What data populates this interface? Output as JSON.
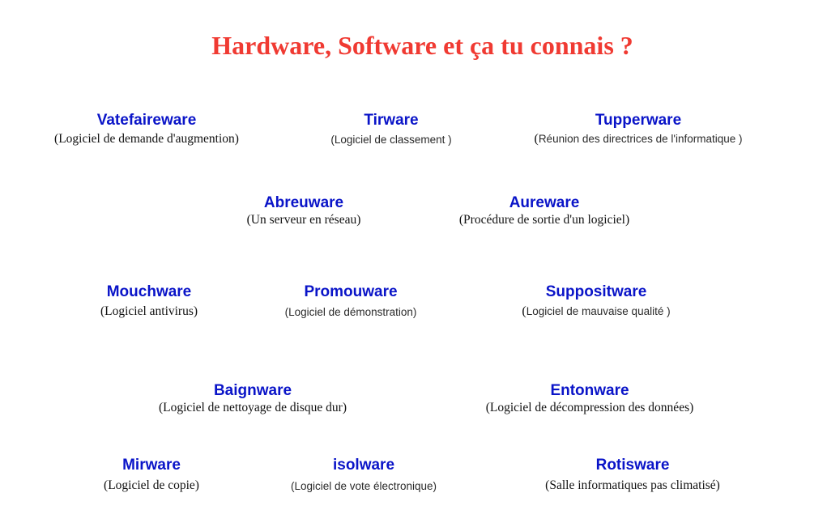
{
  "title": "Hardware, Software et ça tu connais ?",
  "colors": {
    "title": "#f03a32",
    "term": "#0a14c8",
    "definition": "#111111"
  },
  "entries": [
    {
      "term": "Vatefaireware",
      "definition": "(Logiciel de demande d'augmention)"
    },
    {
      "term": "Tirware",
      "definition": "(Logiciel de classement )"
    },
    {
      "term": "Tupperware",
      "paren_open": "(",
      "definition": "Réunion des directrices de l'informatique )"
    },
    {
      "term": "Abreuware",
      "definition": "(Un serveur en réseau)"
    },
    {
      "term": "Aureware",
      "definition": "(Procédure de sortie d'un logiciel)"
    },
    {
      "term": "Mouchware",
      "definition": "(Logiciel antivirus)"
    },
    {
      "term": "Promouware",
      "definition": "(Logiciel de démonstration)"
    },
    {
      "term": "Suppositware",
      "paren_open": "(",
      "definition": "Logiciel de mauvaise qualité )"
    },
    {
      "term": "Baignware",
      "definition": "(Logiciel de nettoyage de disque dur)"
    },
    {
      "term": "Entonware",
      "definition": "(Logiciel de décompression des données)"
    },
    {
      "term": "Mirware",
      "definition": "(Logiciel de copie)"
    },
    {
      "term": "isolware",
      "definition": "(Logiciel de vote électronique)"
    },
    {
      "term": "Rotisware",
      "definition": "(Salle informatiques pas climatisé)"
    }
  ]
}
